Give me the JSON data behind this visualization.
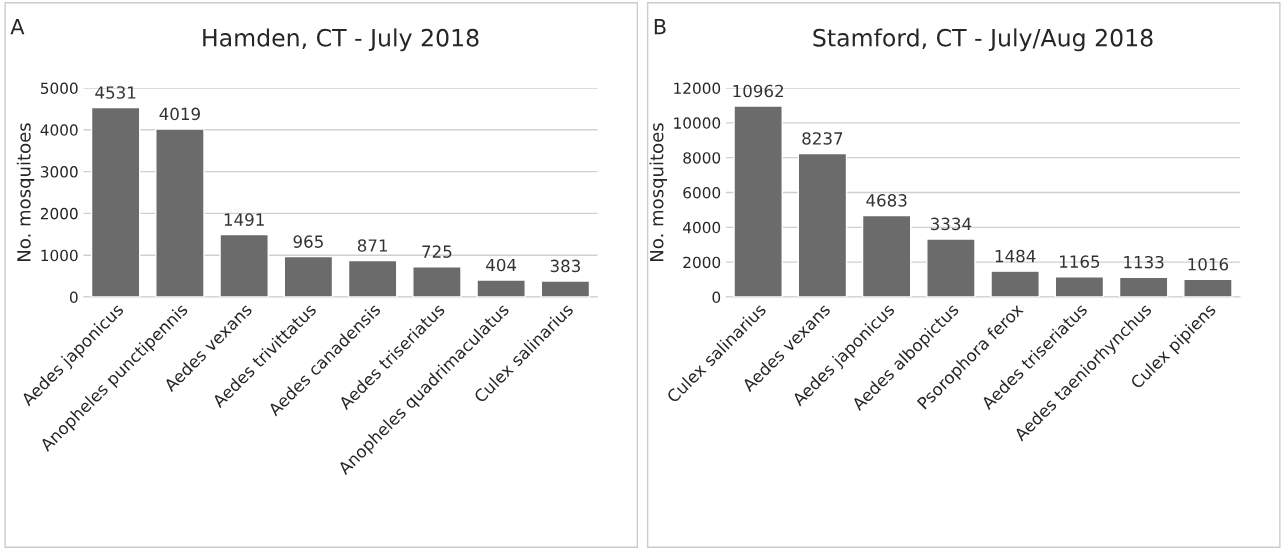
{
  "chart_data": [
    {
      "type": "bar",
      "title": "Hamden, CT - July 2018",
      "ylabel": "No. mosquitoes",
      "annotations": [
        "A"
      ],
      "categories": [
        "Aedes japonicus",
        "Anopheles punctipennis",
        "Aedes vexans",
        "Aedes trivittatus",
        "Aedes canadensis",
        "Aedes triseriatus",
        "Anopheles quadrimaculatus",
        "Culex salinarius"
      ],
      "values": [
        4531,
        4019,
        1491,
        965,
        871,
        725,
        404,
        383
      ],
      "color": "#6b6b6b",
      "ylim": [
        0,
        5000
      ],
      "yticks": [
        0,
        1000,
        2000,
        3000,
        4000,
        5000
      ],
      "grid": "y",
      "data_labels": true
    },
    {
      "type": "bar",
      "title": "Stamford, CT - July/Aug 2018",
      "ylabel": "No. mosquitoes",
      "annotations": [
        "B"
      ],
      "categories": [
        "Culex salinarius",
        "Aedes vexans",
        "Aedes japonicus",
        "Aedes albopictus",
        "Psorophora ferox",
        "Aedes triseriatus",
        "Aedes taeniorhynchus",
        "Culex pipiens"
      ],
      "values": [
        10962,
        8237,
        4683,
        3334,
        1484,
        1165,
        1133,
        1016
      ],
      "color": "#6b6b6b",
      "ylim": [
        0,
        12000
      ],
      "yticks": [
        0,
        2000,
        4000,
        6000,
        8000,
        10000,
        12000
      ],
      "grid": "y",
      "data_labels": true
    }
  ]
}
